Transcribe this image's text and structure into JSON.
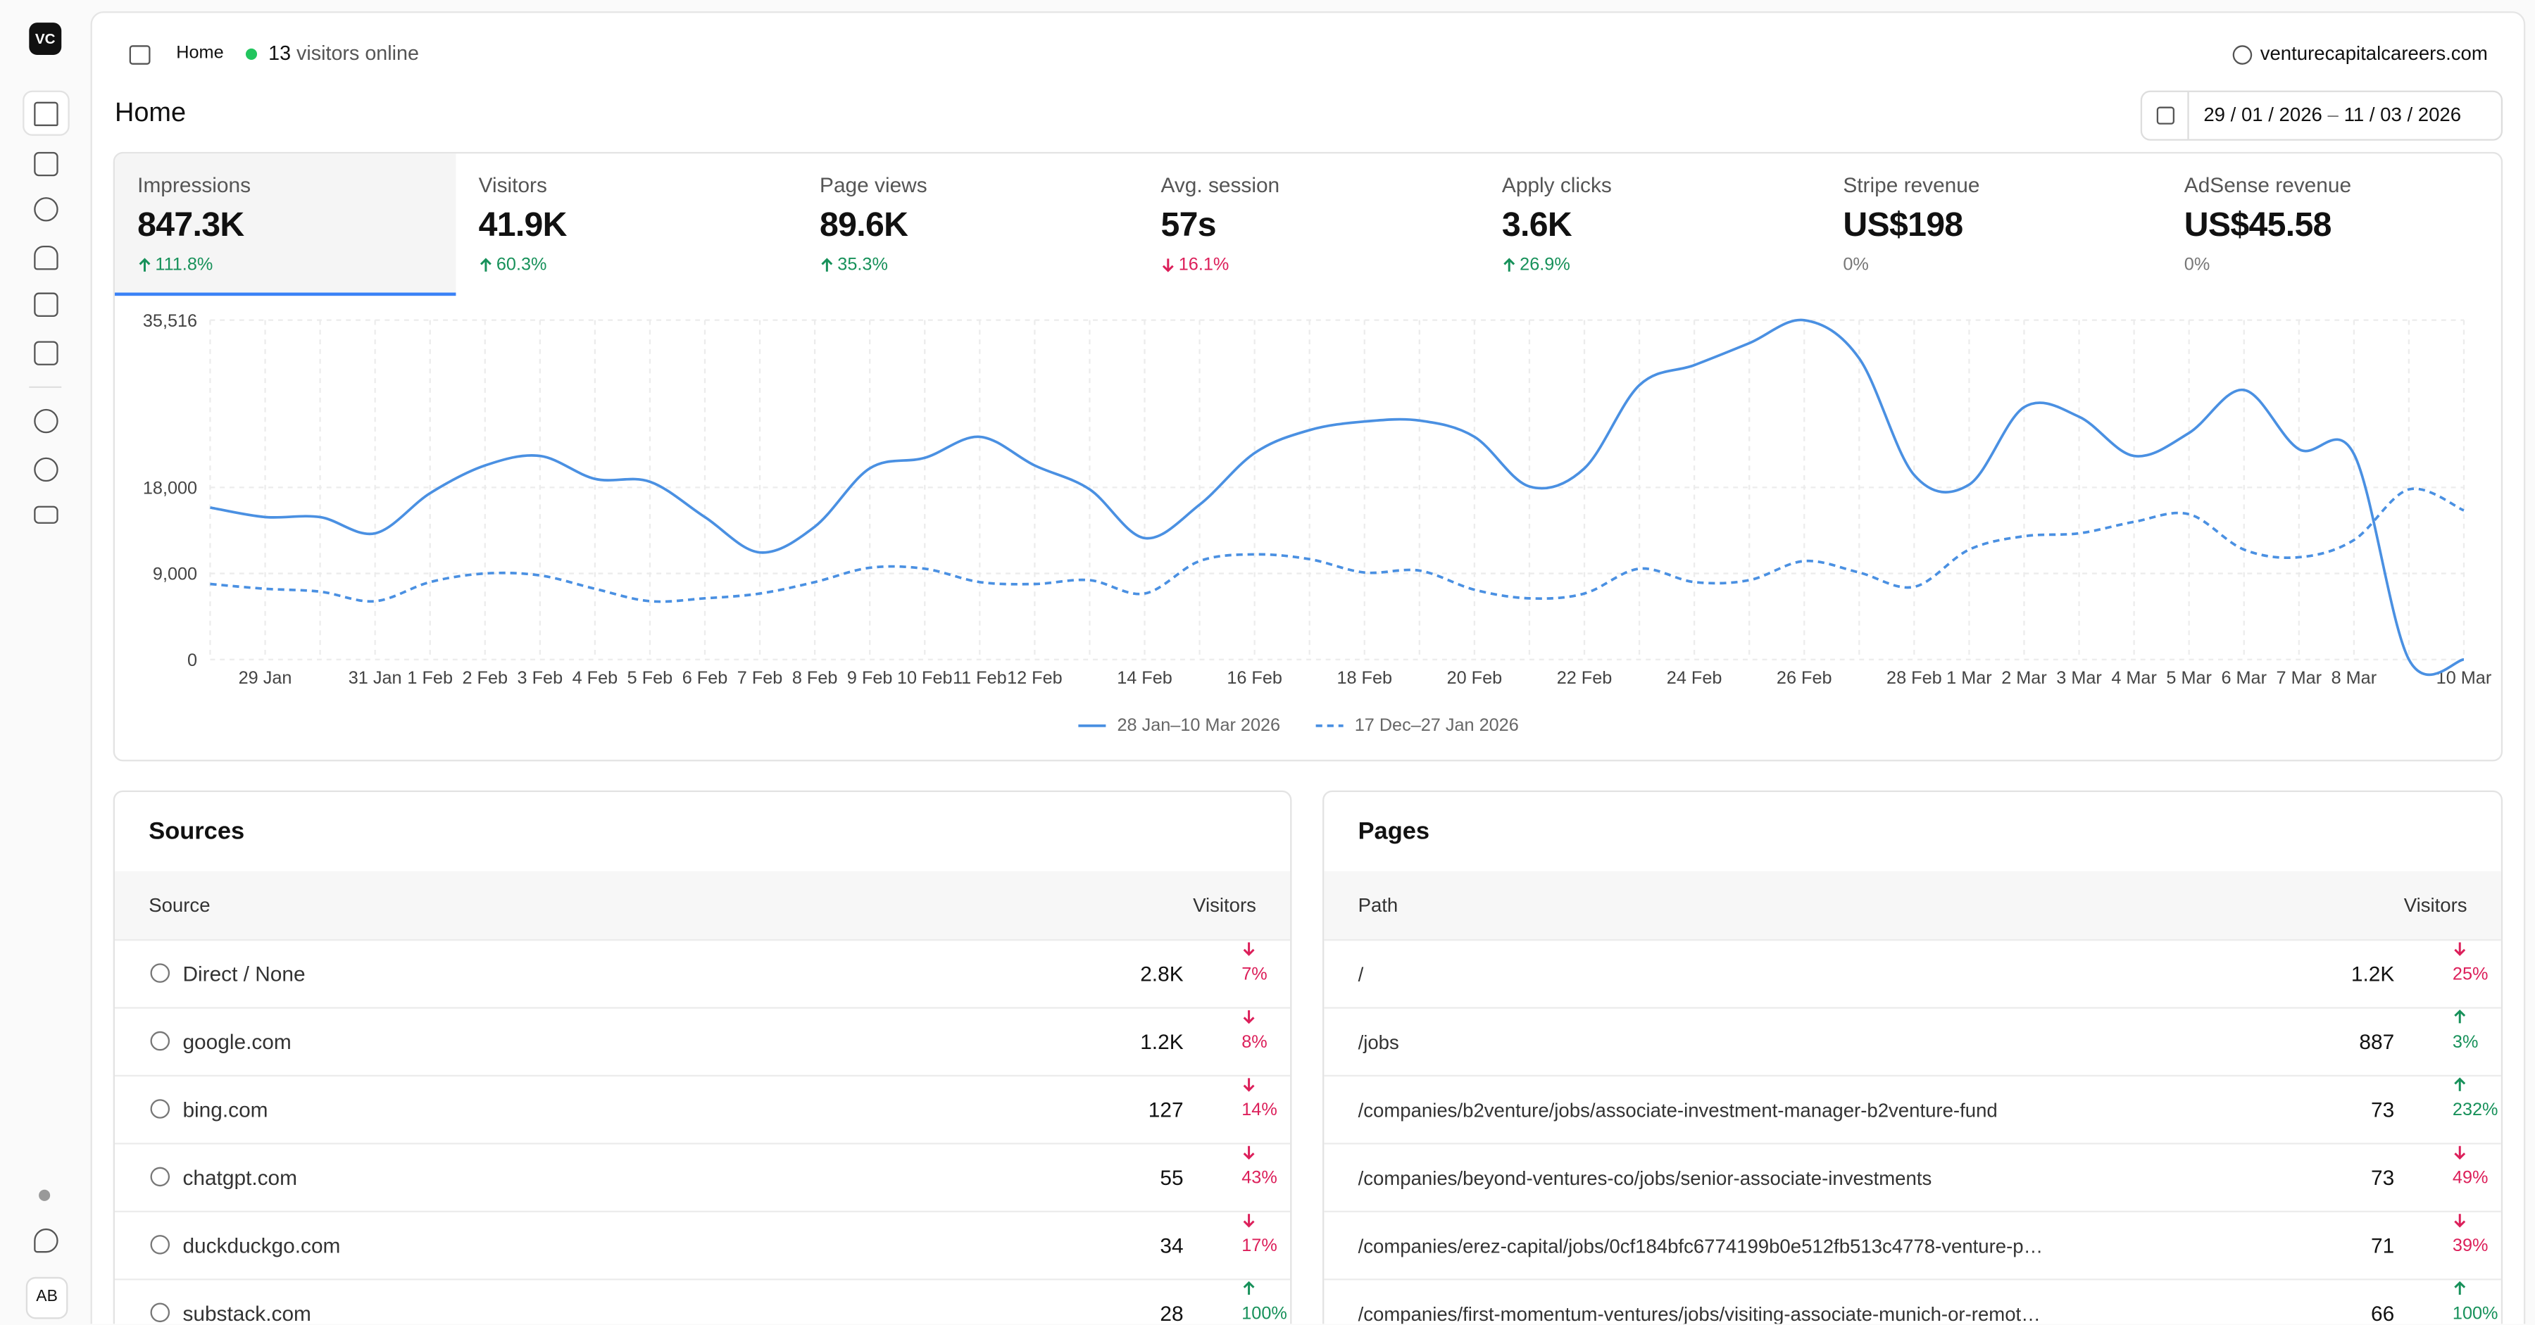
{
  "sidebar": {
    "logo": "VC",
    "avatar": "AB"
  },
  "header": {
    "breadcrumb": "Home",
    "visitors_online": 13,
    "visitors_online_label": "visitors online",
    "site": "venturecapitalcareers.com"
  },
  "page": {
    "title": "Home",
    "date_start": "29 / 01 / 2026",
    "date_separator": "–",
    "date_end": "11 / 03 / 2026"
  },
  "kpis": [
    {
      "label": "Impressions",
      "value": "847.3K",
      "change": "111.8%",
      "trend": "up",
      "selected": true
    },
    {
      "label": "Visitors",
      "value": "41.9K",
      "change": "60.3%",
      "trend": "up"
    },
    {
      "label": "Page views",
      "value": "89.6K",
      "change": "35.3%",
      "trend": "up"
    },
    {
      "label": "Avg. session",
      "value": "57s",
      "change": "16.1%",
      "trend": "down"
    },
    {
      "label": "Apply clicks",
      "value": "3.6K",
      "change": "26.9%",
      "trend": "up"
    },
    {
      "label": "Stripe revenue",
      "value": "US$198",
      "change": "0%"
    },
    {
      "label": "AdSense revenue",
      "value": "US$45.58",
      "change": "0%"
    }
  ],
  "chart_data": {
    "type": "line",
    "categories": [
      null,
      "29 Jan",
      null,
      "31 Jan",
      "1 Feb",
      "2 Feb",
      "3 Feb",
      "4 Feb",
      "5 Feb",
      "6 Feb",
      "7 Feb",
      "8 Feb",
      "9 Feb",
      "10 Feb",
      "11 Feb",
      "12 Feb",
      null,
      "14 Feb",
      null,
      "16 Feb",
      null,
      "18 Feb",
      null,
      "20 Feb",
      null,
      "22 Feb",
      null,
      "24 Feb",
      null,
      "26 Feb",
      null,
      "28 Feb",
      "1 Mar",
      "2 Mar",
      "3 Mar",
      "4 Mar",
      "5 Mar",
      "6 Mar",
      "7 Mar",
      "8 Mar",
      null,
      "10 Mar"
    ],
    "series": [
      {
        "name": "28 Jan–10 Mar 2026",
        "color": "#4a90e2",
        "style": "solid",
        "values": [
          15900,
          14900,
          14900,
          13200,
          17400,
          20300,
          21300,
          18900,
          18600,
          14900,
          11200,
          13900,
          20000,
          21100,
          23300,
          20300,
          17800,
          12700,
          16200,
          21600,
          24000,
          24900,
          25000,
          23300,
          18100,
          20000,
          28700,
          30800,
          33100,
          35500,
          31500,
          19300,
          18300,
          26400,
          25400,
          21300,
          23700,
          28200,
          22000,
          21500,
          0,
          0
        ]
      },
      {
        "name": "17 Dec–27 Jan 2026",
        "color": "#4a90e2",
        "style": "dashed",
        "values": [
          7900,
          7400,
          7100,
          6100,
          8100,
          9000,
          8800,
          7400,
          6100,
          6400,
          6900,
          8100,
          9600,
          9500,
          8100,
          7900,
          8300,
          6900,
          10300,
          11000,
          10500,
          9100,
          9300,
          7300,
          6400,
          6900,
          9500,
          8100,
          8300,
          10300,
          9100,
          7600,
          11500,
          12900,
          13200,
          14400,
          15200,
          11500,
          10700,
          12500,
          17800,
          15600
        ]
      }
    ],
    "ylim": [
      0,
      35516
    ],
    "yticks": [
      0,
      {
        "value": 9000,
        "label": "9,000"
      },
      {
        "value": 18000,
        "label": "18,000"
      },
      {
        "value": 35516,
        "label": "35,516"
      }
    ],
    "grid": true
  },
  "sources": {
    "title": "Sources",
    "columns": [
      "Source",
      "Visitors"
    ],
    "rows": [
      {
        "name": "Direct / None",
        "visitors": "2.8K",
        "change": "7%",
        "trend": "down"
      },
      {
        "name": "google.com",
        "visitors": "1.2K",
        "change": "8%",
        "trend": "down"
      },
      {
        "name": "bing.com",
        "visitors": "127",
        "change": "14%",
        "trend": "down"
      },
      {
        "name": "chatgpt.com",
        "visitors": "55",
        "change": "43%",
        "trend": "down"
      },
      {
        "name": "duckduckgo.com",
        "visitors": "34",
        "change": "17%",
        "trend": "down"
      },
      {
        "name": "substack.com",
        "visitors": "28",
        "change": "100%",
        "trend": "up"
      }
    ]
  },
  "pages": {
    "title": "Pages",
    "columns": [
      "Path",
      "Visitors"
    ],
    "rows": [
      {
        "name": "/",
        "visitors": "1.2K",
        "change": "25%",
        "trend": "down"
      },
      {
        "name": "/jobs",
        "visitors": "887",
        "change": "3%",
        "trend": "up"
      },
      {
        "name": "/companies/b2venture/jobs/associate-investment-manager-b2venture-fund",
        "visitors": "73",
        "change": "232%",
        "trend": "up"
      },
      {
        "name": "/companies/beyond-ventures-co/jobs/senior-associate-investments",
        "visitors": "73",
        "change": "49%",
        "trend": "down"
      },
      {
        "name": "/companies/erez-capital/jobs/0cf184bfc6774199b0e512fb513c4778-venture-p…",
        "visitors": "71",
        "change": "39%",
        "trend": "down"
      },
      {
        "name": "/companies/first-momentum-ventures/jobs/visiting-associate-munich-or-remot…",
        "visitors": "66",
        "change": "100%",
        "trend": "up"
      }
    ]
  }
}
